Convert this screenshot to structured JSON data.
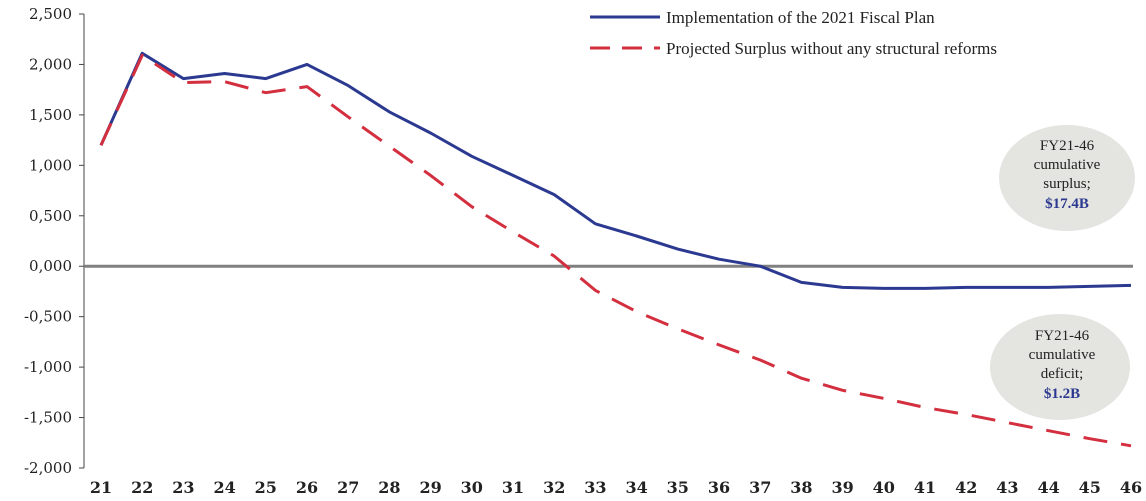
{
  "chart_data": {
    "type": "line",
    "title": "",
    "xlabel": "",
    "ylabel": "",
    "x": [
      "21",
      "22",
      "23",
      "24",
      "25",
      "26",
      "27",
      "28",
      "29",
      "30",
      "31",
      "32",
      "33",
      "34",
      "35",
      "36",
      "37",
      "38",
      "39",
      "40",
      "41",
      "42",
      "43",
      "44",
      "45",
      "46"
    ],
    "ylim": [
      -2000,
      2500
    ],
    "yticks": [
      {
        "value": 2500,
        "label": "2,500"
      },
      {
        "value": 2000,
        "label": "2,000"
      },
      {
        "value": 1500,
        "label": "1,500"
      },
      {
        "value": 1000,
        "label": "1,000"
      },
      {
        "value": 500,
        "label": "0,500"
      },
      {
        "value": 0,
        "label": "0,000"
      },
      {
        "value": -500,
        "label": "-0,500"
      },
      {
        "value": -1000,
        "label": "-1,000"
      },
      {
        "value": -1500,
        "label": "-1,500"
      },
      {
        "value": -2000,
        "label": "-2,000"
      }
    ],
    "grid": false,
    "legend_position": "top-right",
    "series": [
      {
        "name": "Implementation of the 2021 Fiscal Plan",
        "color": "#2b3990",
        "style": "solid",
        "values": [
          1200,
          2110,
          1860,
          1910,
          1860,
          2000,
          1790,
          1530,
          1320,
          1090,
          900,
          710,
          420,
          300,
          170,
          70,
          0,
          -160,
          -210,
          -220,
          -220,
          -210,
          -210,
          -210,
          -200,
          -190
        ]
      },
      {
        "name": "Projected Surplus without any structural reforms",
        "color": "#d32f3f",
        "style": "dashed",
        "values": [
          1200,
          2090,
          1820,
          1830,
          1720,
          1780,
          1480,
          1190,
          900,
          590,
          340,
          100,
          -240,
          -450,
          -620,
          -780,
          -930,
          -1110,
          -1230,
          -1310,
          -1400,
          -1470,
          -1550,
          -1630,
          -1710,
          -1780
        ]
      }
    ],
    "annotations": [
      {
        "lines": [
          "FY21-46",
          "cumulative",
          "surplus;"
        ],
        "value": "$17.4B",
        "value_color": "#2b3990"
      },
      {
        "lines": [
          "FY21-46",
          "cumulative",
          "deficit;"
        ],
        "value": "$1.2B",
        "value_color": "#2b3990"
      }
    ],
    "zero_line_color": "#808080",
    "bubble_color": "#e4e4e0"
  }
}
